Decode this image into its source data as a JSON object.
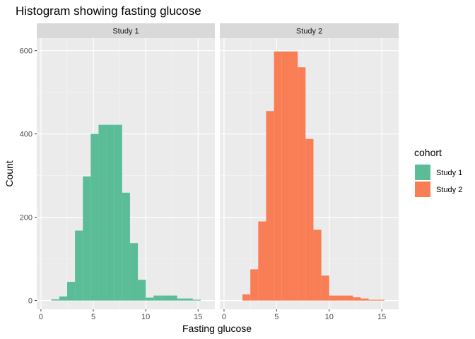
{
  "chart_data": {
    "type": "bar",
    "title": "Histogram showing fasting glucose",
    "xlabel": "Fasting glucose",
    "ylabel": "Count",
    "xlim": [
      -0.4,
      16.6
    ],
    "ylim": [
      -21,
      630
    ],
    "x_ticks": [
      0,
      5,
      10,
      15
    ],
    "y_ticks": [
      0,
      200,
      400,
      600
    ],
    "bin_width": 0.75,
    "grid": true,
    "legend": {
      "title": "cohort",
      "placement": "right",
      "entries": [
        {
          "label": "Study 1",
          "color": "#5bbd97"
        },
        {
          "label": "Study 2",
          "color": "#f97e55"
        }
      ]
    },
    "panels": [
      {
        "strip": "Study 1",
        "color": "#5bbd97",
        "bins": [
          {
            "x0": 1.0,
            "x1": 1.75,
            "count": 3
          },
          {
            "x0": 1.75,
            "x1": 2.5,
            "count": 10
          },
          {
            "x0": 2.5,
            "x1": 3.25,
            "count": 45
          },
          {
            "x0": 3.25,
            "x1": 4.0,
            "count": 168
          },
          {
            "x0": 4.0,
            "x1": 4.75,
            "count": 298
          },
          {
            "x0": 4.75,
            "x1": 5.5,
            "count": 400
          },
          {
            "x0": 5.5,
            "x1": 6.25,
            "count": 422
          },
          {
            "x0": 6.25,
            "x1": 7.0,
            "count": 422
          },
          {
            "x0": 7.0,
            "x1": 7.75,
            "count": 422
          },
          {
            "x0": 7.75,
            "x1": 8.5,
            "count": 259
          },
          {
            "x0": 8.5,
            "x1": 9.25,
            "count": 138
          },
          {
            "x0": 9.25,
            "x1": 10.0,
            "count": 50
          },
          {
            "x0": 10.0,
            "x1": 10.75,
            "count": 7
          },
          {
            "x0": 10.75,
            "x1": 11.5,
            "count": 12
          },
          {
            "x0": 11.5,
            "x1": 12.25,
            "count": 12
          },
          {
            "x0": 12.25,
            "x1": 13.0,
            "count": 12
          },
          {
            "x0": 13.0,
            "x1": 13.75,
            "count": 5
          },
          {
            "x0": 13.75,
            "x1": 14.5,
            "count": 5
          },
          {
            "x0": 14.5,
            "x1": 15.25,
            "count": 2
          }
        ]
      },
      {
        "strip": "Study 2",
        "color": "#f97e55",
        "bins": [
          {
            "x0": 1.75,
            "x1": 2.5,
            "count": 15
          },
          {
            "x0": 2.5,
            "x1": 3.25,
            "count": 75
          },
          {
            "x0": 3.25,
            "x1": 4.0,
            "count": 190
          },
          {
            "x0": 4.0,
            "x1": 4.75,
            "count": 455
          },
          {
            "x0": 4.75,
            "x1": 5.5,
            "count": 598
          },
          {
            "x0": 5.5,
            "x1": 6.25,
            "count": 598
          },
          {
            "x0": 6.25,
            "x1": 7.0,
            "count": 598
          },
          {
            "x0": 7.0,
            "x1": 7.75,
            "count": 560
          },
          {
            "x0": 7.75,
            "x1": 8.5,
            "count": 388
          },
          {
            "x0": 8.5,
            "x1": 9.25,
            "count": 170
          },
          {
            "x0": 9.25,
            "x1": 10.0,
            "count": 60
          },
          {
            "x0": 10.0,
            "x1": 10.75,
            "count": 12
          },
          {
            "x0": 10.75,
            "x1": 11.5,
            "count": 12
          },
          {
            "x0": 11.5,
            "x1": 12.25,
            "count": 12
          },
          {
            "x0": 12.25,
            "x1": 13.0,
            "count": 8
          },
          {
            "x0": 13.0,
            "x1": 13.75,
            "count": 5
          },
          {
            "x0": 13.75,
            "x1": 14.5,
            "count": 2
          },
          {
            "x0": 14.5,
            "x1": 15.25,
            "count": 2
          }
        ]
      }
    ]
  }
}
